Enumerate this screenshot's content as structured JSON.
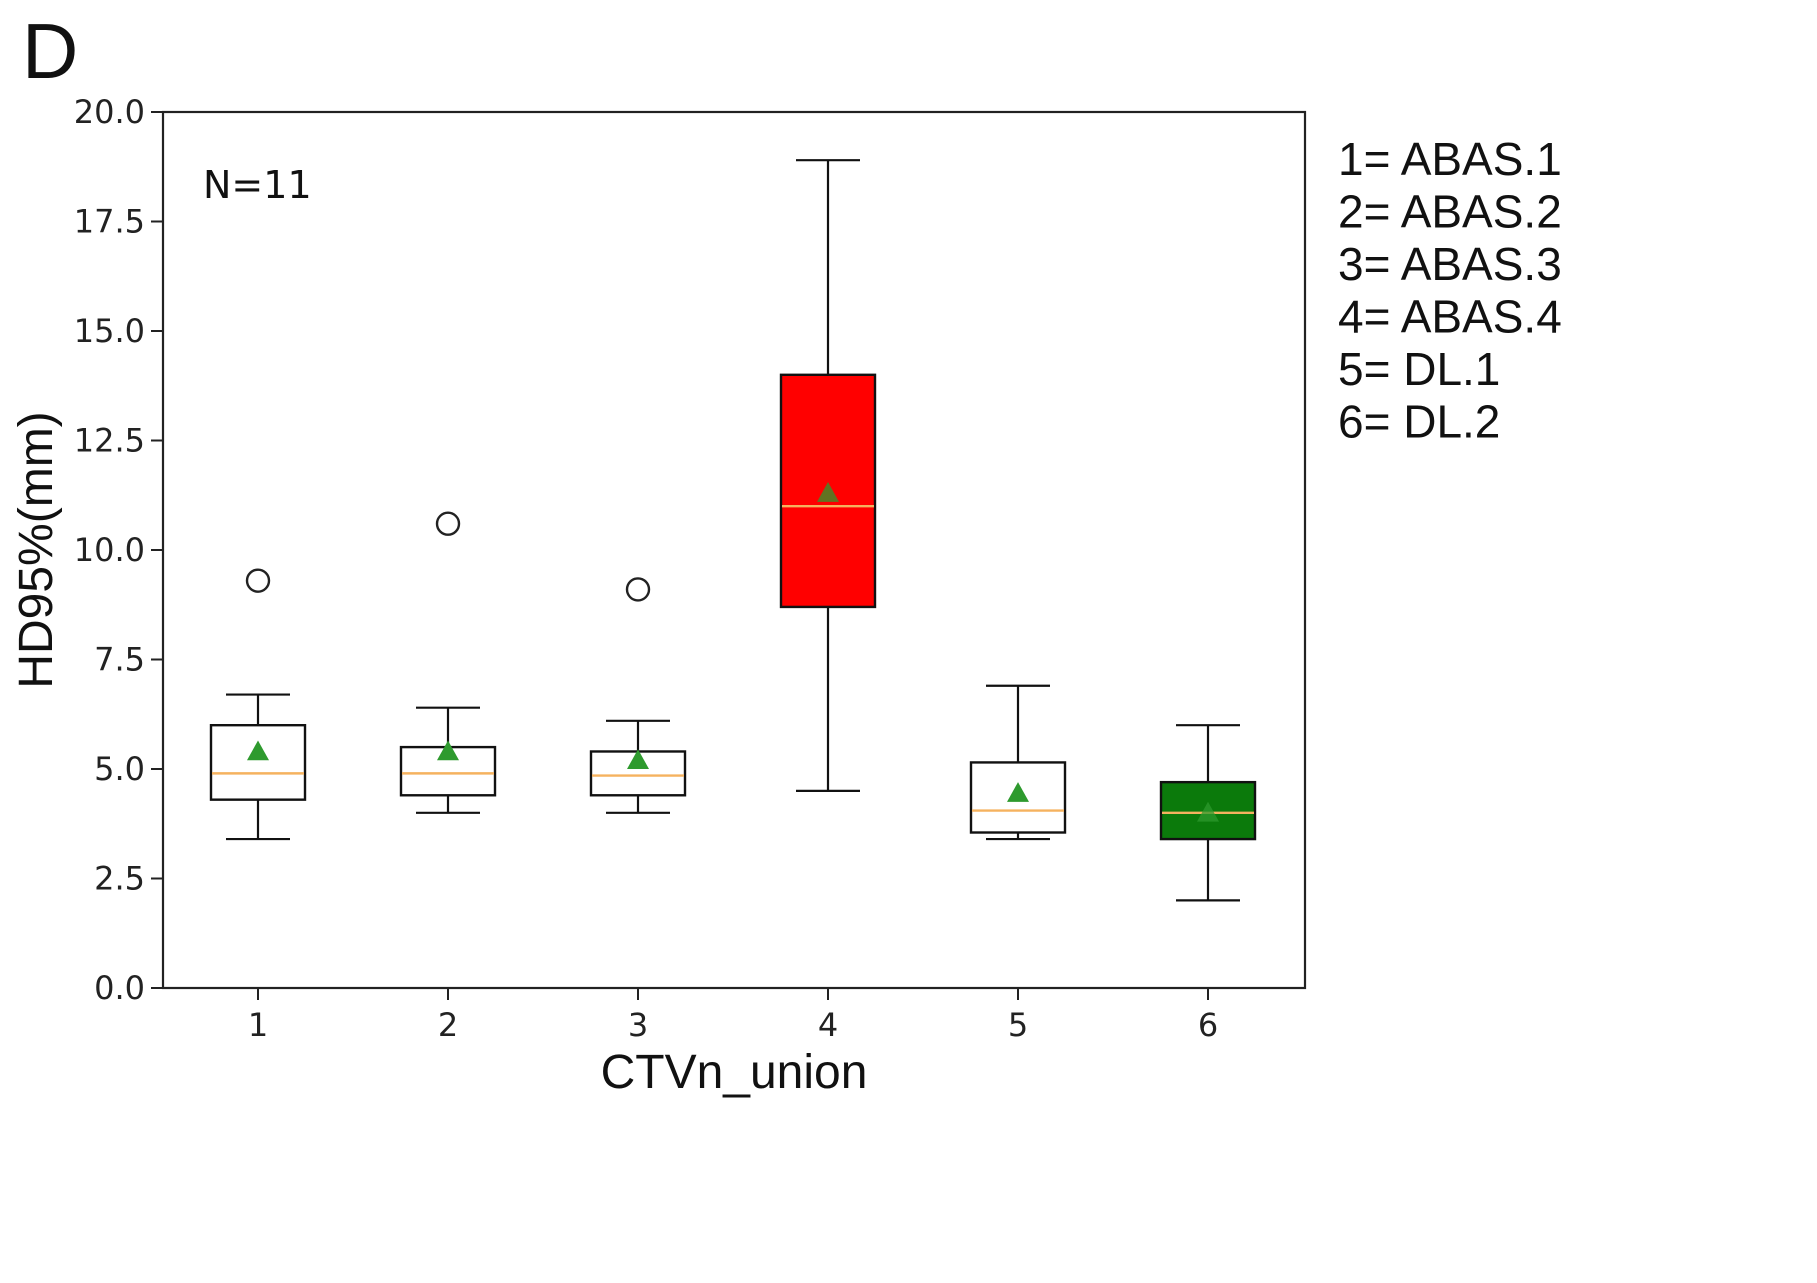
{
  "panel_label": "D",
  "chart_data": {
    "type": "box",
    "xlabel": "CTVn_union",
    "ylabel": "HD95%(mm)",
    "ylim": [
      0,
      20
    ],
    "yticks": [
      "0.0",
      "2.5",
      "5.0",
      "7.5",
      "10.0",
      "12.5",
      "15.0",
      "17.5",
      "20.0"
    ],
    "categories": [
      "1",
      "2",
      "3",
      "4",
      "5",
      "6"
    ],
    "annotation": "N=11",
    "legend": [
      "1= ABAS.1",
      "2= ABAS.2",
      "3= ABAS.3",
      "4= ABAS.4",
      "5= DL.1",
      "6= DL.2"
    ],
    "grid": false,
    "boxes": [
      {
        "category": "1",
        "whisker_low": 3.4,
        "q1": 4.3,
        "median": 4.9,
        "q3": 6.0,
        "whisker_high": 6.7,
        "mean": 5.4,
        "outliers": [
          9.3
        ],
        "fill": "#ffffff"
      },
      {
        "category": "2",
        "whisker_low": 4.0,
        "q1": 4.4,
        "median": 4.9,
        "q3": 5.5,
        "whisker_high": 6.4,
        "mean": 5.4,
        "outliers": [
          10.6
        ],
        "fill": "#ffffff"
      },
      {
        "category": "3",
        "whisker_low": 4.0,
        "q1": 4.4,
        "median": 4.85,
        "q3": 5.4,
        "whisker_high": 6.1,
        "mean": 5.2,
        "outliers": [
          9.1
        ],
        "fill": "#ffffff"
      },
      {
        "category": "4",
        "whisker_low": 4.5,
        "q1": 8.7,
        "median": 11.0,
        "q3": 14.0,
        "whisker_high": 18.9,
        "mean": 11.3,
        "outliers": [],
        "fill": "#ff0000"
      },
      {
        "category": "5",
        "whisker_low": 3.4,
        "q1": 3.55,
        "median": 4.05,
        "q3": 5.15,
        "whisker_high": 6.9,
        "mean": 4.45,
        "outliers": [],
        "fill": "#ffffff"
      },
      {
        "category": "6",
        "whisker_low": 2.0,
        "q1": 3.4,
        "median": 4.0,
        "q3": 4.7,
        "whisker_high": 6.0,
        "mean": 4.0,
        "outliers": [],
        "fill": "#0b7a0b"
      }
    ],
    "colors": {
      "median": "#f5b25f",
      "mean": "#2e9a2e",
      "box_edge": "#111111"
    }
  }
}
